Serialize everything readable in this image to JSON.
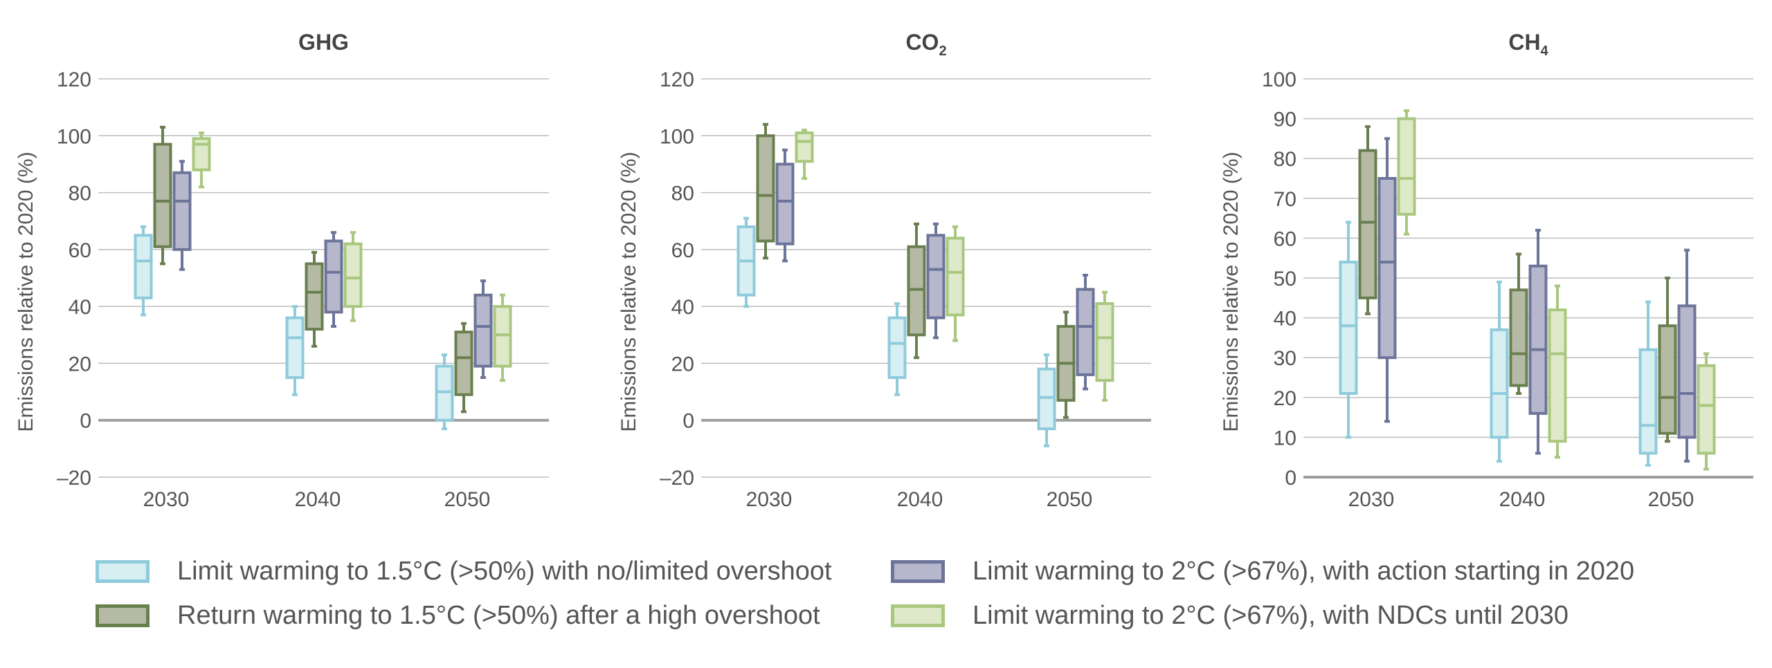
{
  "chart_data": [
    {
      "type": "box",
      "title": "GHG",
      "ylabel": "Emissions relative to 2020 (%)",
      "ylim": [
        -20,
        120
      ],
      "yticks": [
        -20,
        0,
        20,
        40,
        60,
        80,
        100,
        120
      ],
      "ytick_labels": [
        "–20",
        "0",
        "20",
        "40",
        "60",
        "80",
        "100",
        "120"
      ],
      "categories": [
        "2030",
        "2040",
        "2050"
      ],
      "series": [
        {
          "name": "Limit warming to 1.5°C (>50%) with no/limited overshoot",
          "boxes": [
            {
              "min": 37,
              "q1": 43,
              "median": 56,
              "q3": 65,
              "max": 68
            },
            {
              "min": 9,
              "q1": 15,
              "median": 29,
              "q3": 36,
              "max": 40
            },
            {
              "min": -3,
              "q1": 0,
              "median": 10,
              "q3": 19,
              "max": 23
            }
          ]
        },
        {
          "name": "Return warming to 1.5°C (>50%) after a high overshoot",
          "boxes": [
            {
              "min": 55,
              "q1": 61,
              "median": 77,
              "q3": 97,
              "max": 103
            },
            {
              "min": 26,
              "q1": 32,
              "median": 45,
              "q3": 55,
              "max": 59
            },
            {
              "min": 3,
              "q1": 9,
              "median": 22,
              "q3": 31,
              "max": 34
            }
          ]
        },
        {
          "name": "Limit warming to 2°C (>67%), with action starting in 2020",
          "boxes": [
            {
              "min": 53,
              "q1": 60,
              "median": 77,
              "q3": 87,
              "max": 91
            },
            {
              "min": 33,
              "q1": 38,
              "median": 52,
              "q3": 63,
              "max": 66
            },
            {
              "min": 15,
              "q1": 19,
              "median": 33,
              "q3": 44,
              "max": 49
            }
          ]
        },
        {
          "name": "Limit warming to 2°C (>67%), with NDCs until 2030",
          "boxes": [
            {
              "min": 82,
              "q1": 88,
              "median": 97,
              "q3": 99,
              "max": 101
            },
            {
              "min": 35,
              "q1": 40,
              "median": 50,
              "q3": 62,
              "max": 66
            },
            {
              "min": 14,
              "q1": 19,
              "median": 30,
              "q3": 40,
              "max": 44
            }
          ]
        }
      ]
    },
    {
      "type": "box",
      "title": "CO2",
      "ylabel": "Emissions relative to 2020 (%)",
      "ylim": [
        -20,
        120
      ],
      "yticks": [
        -20,
        0,
        20,
        40,
        60,
        80,
        100,
        120
      ],
      "ytick_labels": [
        "–20",
        "0",
        "20",
        "40",
        "60",
        "80",
        "100",
        "120"
      ],
      "categories": [
        "2030",
        "2040",
        "2050"
      ],
      "series": [
        {
          "name": "Limit warming to 1.5°C (>50%) with no/limited overshoot",
          "boxes": [
            {
              "min": 40,
              "q1": 44,
              "median": 56,
              "q3": 68,
              "max": 71
            },
            {
              "min": 9,
              "q1": 15,
              "median": 27,
              "q3": 36,
              "max": 41
            },
            {
              "min": -9,
              "q1": -3,
              "median": 8,
              "q3": 18,
              "max": 23
            }
          ]
        },
        {
          "name": "Return warming to 1.5°C (>50%) after a high overshoot",
          "boxes": [
            {
              "min": 57,
              "q1": 63,
              "median": 79,
              "q3": 100,
              "max": 104
            },
            {
              "min": 22,
              "q1": 30,
              "median": 46,
              "q3": 61,
              "max": 69
            },
            {
              "min": 1,
              "q1": 7,
              "median": 20,
              "q3": 33,
              "max": 38
            }
          ]
        },
        {
          "name": "Limit warming to 2°C (>67%), with action starting in 2020",
          "boxes": [
            {
              "min": 56,
              "q1": 62,
              "median": 77,
              "q3": 90,
              "max": 95
            },
            {
              "min": 29,
              "q1": 36,
              "median": 53,
              "q3": 65,
              "max": 69
            },
            {
              "min": 11,
              "q1": 16,
              "median": 33,
              "q3": 46,
              "max": 51
            }
          ]
        },
        {
          "name": "Limit warming to 2°C (>67%), with NDCs until 2030",
          "boxes": [
            {
              "min": 85,
              "q1": 91,
              "median": 98,
              "q3": 101,
              "max": 102
            },
            {
              "min": 28,
              "q1": 37,
              "median": 52,
              "q3": 64,
              "max": 68
            },
            {
              "min": 7,
              "q1": 14,
              "median": 29,
              "q3": 41,
              "max": 45
            }
          ]
        }
      ]
    },
    {
      "type": "box",
      "title": "CH4",
      "ylabel": "Emissions relative to 2020 (%)",
      "ylim": [
        0,
        100
      ],
      "yticks": [
        0,
        10,
        20,
        30,
        40,
        50,
        60,
        70,
        80,
        90,
        100
      ],
      "ytick_labels": [
        "0",
        "10",
        "20",
        "30",
        "40",
        "50",
        "60",
        "70",
        "80",
        "90",
        "100"
      ],
      "categories": [
        "2030",
        "2040",
        "2050"
      ],
      "series": [
        {
          "name": "Limit warming to 1.5°C (>50%) with no/limited overshoot",
          "boxes": [
            {
              "min": 10,
              "q1": 21,
              "median": 38,
              "q3": 54,
              "max": 64
            },
            {
              "min": 4,
              "q1": 10,
              "median": 21,
              "q3": 37,
              "max": 49
            },
            {
              "min": 3,
              "q1": 6,
              "median": 13,
              "q3": 32,
              "max": 44
            }
          ]
        },
        {
          "name": "Return warming to 1.5°C (>50%) after a high overshoot",
          "boxes": [
            {
              "min": 41,
              "q1": 45,
              "median": 64,
              "q3": 82,
              "max": 88
            },
            {
              "min": 21,
              "q1": 23,
              "median": 31,
              "q3": 47,
              "max": 56
            },
            {
              "min": 9,
              "q1": 11,
              "median": 20,
              "q3": 38,
              "max": 50
            }
          ]
        },
        {
          "name": "Limit warming to 2°C (>67%), with action starting in 2020",
          "boxes": [
            {
              "min": 14,
              "q1": 30,
              "median": 54,
              "q3": 75,
              "max": 85
            },
            {
              "min": 6,
              "q1": 16,
              "median": 32,
              "q3": 53,
              "max": 62
            },
            {
              "min": 4,
              "q1": 10,
              "median": 21,
              "q3": 43,
              "max": 57
            }
          ]
        },
        {
          "name": "Limit warming to 2°C (>67%), with NDCs until 2030",
          "boxes": [
            {
              "min": 61,
              "q1": 66,
              "median": 75,
              "q3": 90,
              "max": 92
            },
            {
              "min": 5,
              "q1": 9,
              "median": 31,
              "q3": 42,
              "max": 48
            },
            {
              "min": 2,
              "q1": 6,
              "median": 18,
              "q3": 28,
              "max": 31
            }
          ]
        }
      ]
    }
  ],
  "legend": {
    "items": [
      {
        "label": "Limit warming to 1.5°C (>50%) with no/limited overshoot"
      },
      {
        "label": "Return warming to 1.5°C (>50%) after a high overshoot"
      },
      {
        "label": "Limit warming to 2°C (>67%), with action starting in 2020"
      },
      {
        "label": "Limit warming to 2°C (>67%), with NDCs until 2030"
      }
    ]
  },
  "colors": {
    "series_stroke": [
      "#8fcbdb",
      "#6a7f50",
      "#6c7499",
      "#a9c77f"
    ],
    "series_fill": [
      "#d7eef3",
      "#b5baa5",
      "#b6b7cc",
      "#dde9c8"
    ],
    "grid": "#bdbdbd",
    "zero_line": "#9e9e9e",
    "text": "#555555",
    "title": "#444444"
  }
}
